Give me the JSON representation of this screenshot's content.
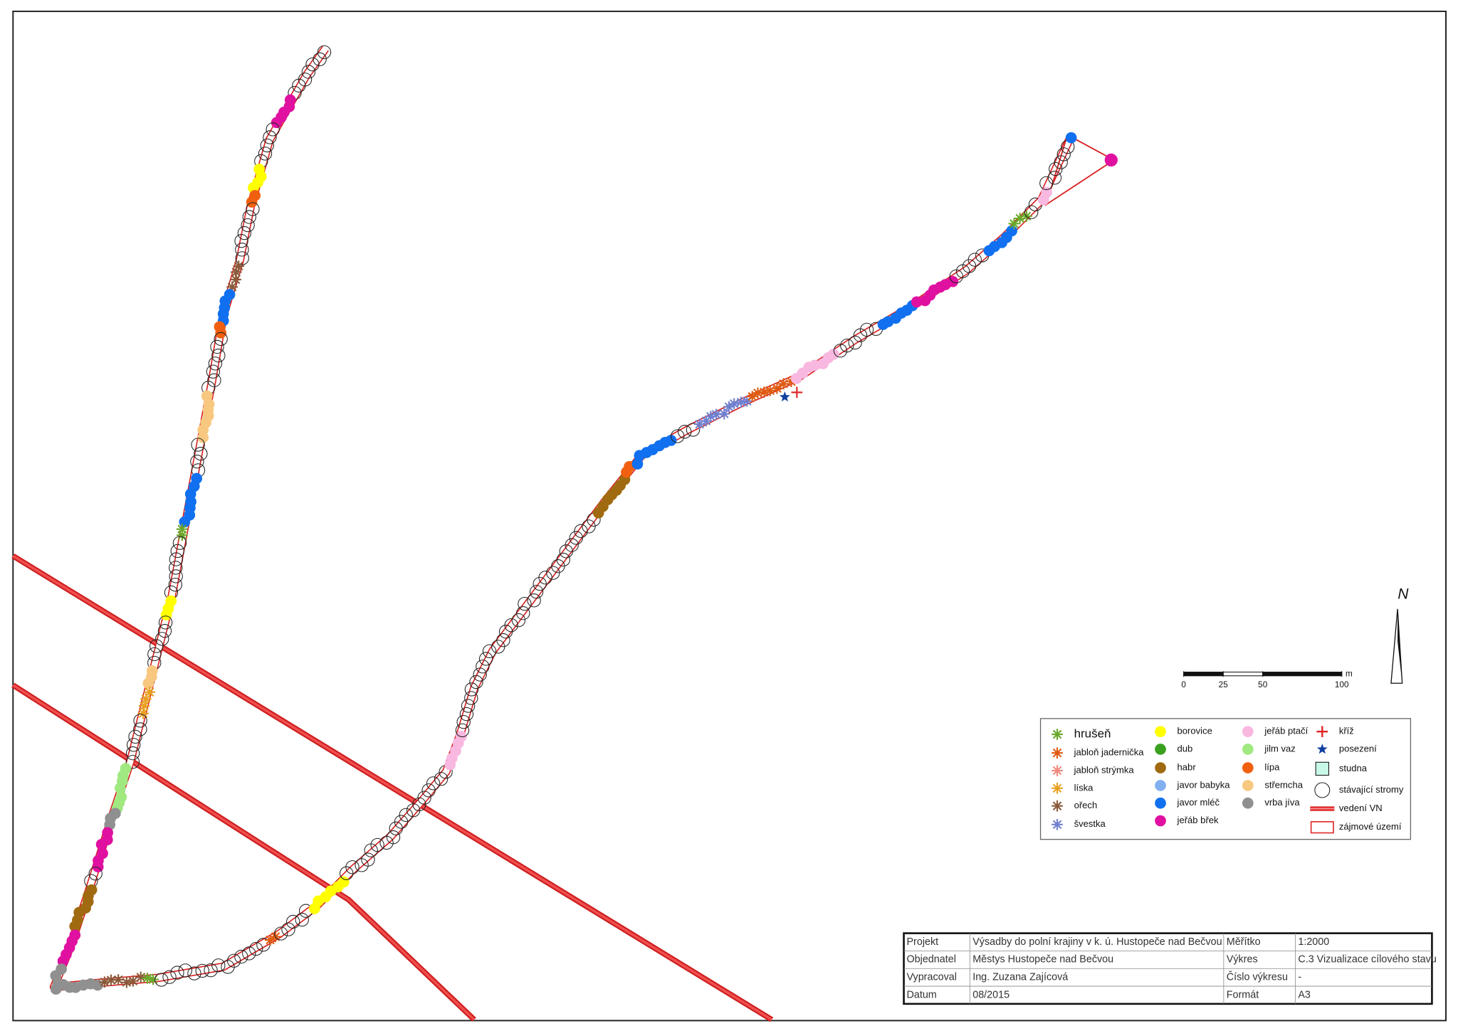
{
  "legend": {
    "columns": [
      [
        {
          "label": "hrušeň",
          "color": "#6aa82a"
        },
        {
          "label": "jabloň jadernička",
          "color": "#e05a10"
        },
        {
          "label": "jabloň strýmka",
          "color": "#f08a80"
        },
        {
          "label": "líska",
          "color": "#e8a020"
        },
        {
          "label": "ořech",
          "color": "#8a5a3a"
        },
        {
          "label": "švestka",
          "color": "#7080d0"
        }
      ],
      [
        {
          "label": "borovice",
          "color": "#ffff00"
        },
        {
          "label": "dub",
          "color": "#3aa020"
        },
        {
          "label": "habr",
          "color": "#a06a10"
        },
        {
          "label": "javor babyka",
          "color": "#80b0f0"
        },
        {
          "label": "javor mléč",
          "color": "#1070f0"
        },
        {
          "label": "jeřáb břek",
          "color": "#e010a0"
        }
      ],
      [
        {
          "label": "jeřáb ptačí",
          "color": "#f8b8e0"
        },
        {
          "label": "jilm vaz",
          "color": "#a0e880"
        },
        {
          "label": "lípa",
          "color": "#f06010"
        },
        {
          "label": "střemcha",
          "color": "#f8c880"
        },
        {
          "label": "vrba jíva",
          "color": "#909090"
        }
      ],
      [
        {
          "label": "kříž",
          "color": "#e02020"
        },
        {
          "label": "posezení",
          "color": "#1040a0"
        },
        {
          "label": "studna",
          "color": "#c8f8e8"
        },
        {
          "label": "stávající stromy",
          "color": "#000000"
        },
        {
          "label": "vedení VN",
          "color": "#e03030"
        },
        {
          "label": "zájmové území",
          "color": "#e03030"
        }
      ]
    ]
  },
  "scale_bar": {
    "ticks": [
      0,
      25,
      50,
      100
    ],
    "unit": "m"
  },
  "north": "N",
  "title_block": {
    "rows": [
      [
        "Projekt",
        "Výsadby do polní krajiny v k. ú. Hustopeče nad Bečvou",
        "Měřítko",
        "1:2000"
      ],
      [
        "Objednatel",
        "Městys Hustopeče nad Bečvou",
        "Výkres",
        "C.3 Vizualizace cílového stavu"
      ],
      [
        "Vypracoval",
        "Ing. Zuzana Zajícová",
        "Číslo výkresu",
        "-"
      ],
      [
        "Datum",
        "08/2015",
        "Formát",
        "A3"
      ]
    ]
  }
}
